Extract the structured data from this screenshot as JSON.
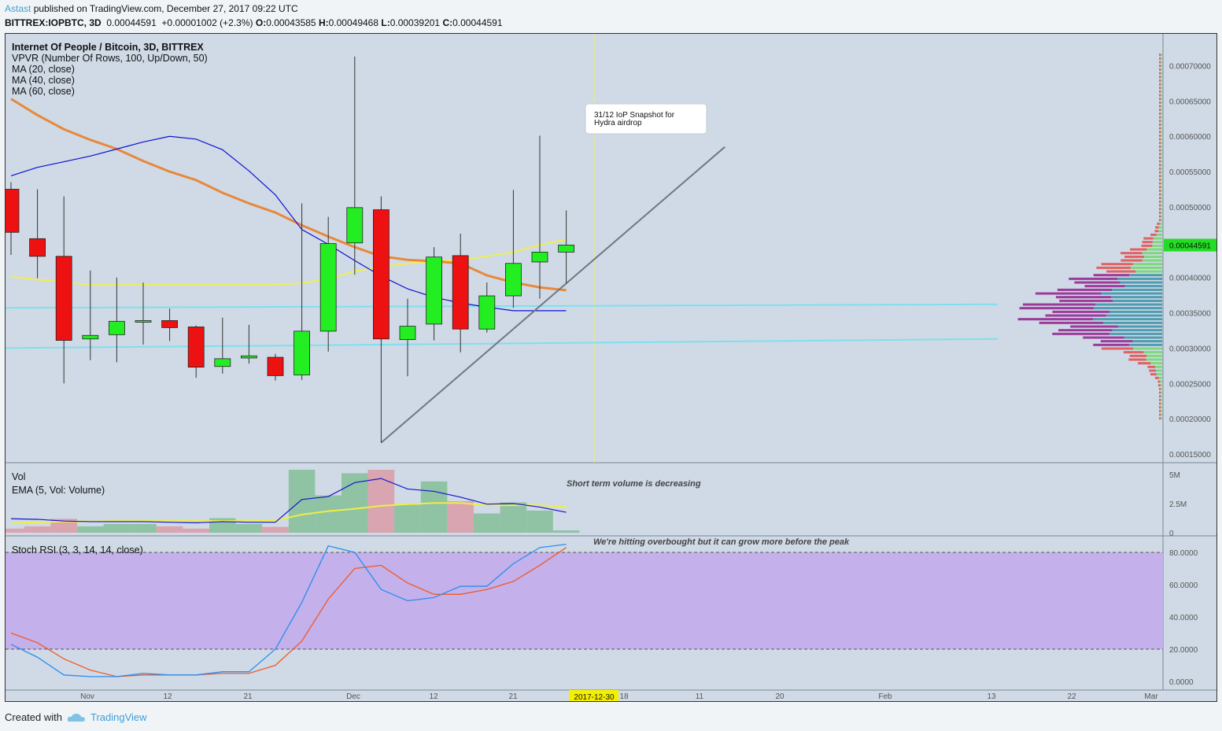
{
  "header": {
    "author": "Astast",
    "published": "published on TradingView.com, December 27, 2017 09:22 UTC",
    "symbol": "BITTREX:IOPBTC, 3D",
    "last": "0.00044591",
    "change": "+0.00001002 (+2.3%)",
    "o_label": "O:",
    "o_value": "0.00043585",
    "h_label": "H:",
    "h_value": "0.00049468",
    "l_label": "L:",
    "l_value": "0.00039201",
    "c_label": "C:",
    "c_value": "0.00044591"
  },
  "main_legend": {
    "title": "Internet Of People / Bitcoin, 3D, BITTREX",
    "vpvr": "VPVR (Number Of Rows, 100, Up/Down, 50)",
    "ma20": "MA (20, close)",
    "ma40": "MA (40, close)",
    "ma60": "MA (60, close)"
  },
  "annotations": {
    "snapshot_note": [
      "31/12 IoP Snapshot for",
      "Hydra airdrop"
    ],
    "volume_note": "Short term volume is decreasing",
    "rsi_note": "We're hitting overbought but it can grow more before the peak"
  },
  "volume_legend": {
    "vol": "Vol",
    "ema": "EMA (5, Vol: Volume)"
  },
  "rsi_legend": {
    "title": "Stoch RSI (3, 3, 14, 14, close)"
  },
  "price_axis": {
    "ticks": [
      "0.00070000",
      "0.00065000",
      "0.00060000",
      "0.00055000",
      "0.00050000",
      "0.00040000",
      "0.00035000",
      "0.00030000",
      "0.00025000",
      "0.00020000",
      "0.00015000"
    ],
    "current": "0.00044591"
  },
  "volume_axis": {
    "ticks": [
      "5M",
      "2.5M",
      "0"
    ]
  },
  "rsi_axis": {
    "ticks": [
      "80.0000",
      "60.0000",
      "40.0000",
      "20.0000",
      "0.0000"
    ]
  },
  "time_axis": {
    "ticks": [
      "Nov",
      "12",
      "21",
      "Dec",
      "12",
      "21",
      "18",
      "11",
      "20",
      "Feb",
      "13",
      "22",
      "Mar"
    ],
    "highlight": "2017-12-30"
  },
  "footer": {
    "created": "Created with",
    "brand": "TradingView"
  },
  "chart_data": {
    "type": "candlestick",
    "title": "Internet Of People / Bitcoin, 3D, BITTREX",
    "ylim": [
      0.00014,
      0.00072
    ],
    "candles": [
      {
        "o": 0.000525,
        "h": 0.000535,
        "l": 0.000432,
        "c": 0.000464
      },
      {
        "o": 0.000455,
        "h": 0.000525,
        "l": 0.000399,
        "c": 0.00043
      },
      {
        "o": 0.00043,
        "h": 0.000515,
        "l": 0.00025,
        "c": 0.000311
      },
      {
        "o": 0.000313,
        "h": 0.00041,
        "l": 0.000283,
        "c": 0.000318
      },
      {
        "o": 0.000319,
        "h": 0.0004,
        "l": 0.00028,
        "c": 0.000338
      },
      {
        "o": 0.000337,
        "h": 0.000393,
        "l": 0.000305,
        "c": 0.000339
      },
      {
        "o": 0.000339,
        "h": 0.000356,
        "l": 0.00031,
        "c": 0.000329
      },
      {
        "o": 0.00033,
        "h": 0.000332,
        "l": 0.000258,
        "c": 0.000273
      },
      {
        "o": 0.000274,
        "h": 0.000343,
        "l": 0.000264,
        "c": 0.000285
      },
      {
        "o": 0.000286,
        "h": 0.000333,
        "l": 0.000278,
        "c": 0.000289
      },
      {
        "o": 0.000287,
        "h": 0.000292,
        "l": 0.000254,
        "c": 0.000261
      },
      {
        "o": 0.000262,
        "h": 0.000505,
        "l": 0.000255,
        "c": 0.000324
      },
      {
        "o": 0.000324,
        "h": 0.000486,
        "l": 0.000295,
        "c": 0.000448
      },
      {
        "o": 0.000449,
        "h": 0.000713,
        "l": 0.000404,
        "c": 0.000499
      },
      {
        "o": 0.000496,
        "h": 0.000515,
        "l": 0.000166,
        "c": 0.000313
      },
      {
        "o": 0.000312,
        "h": 0.00037,
        "l": 0.00026,
        "c": 0.000331
      },
      {
        "o": 0.000334,
        "h": 0.000443,
        "l": 0.000311,
        "c": 0.000429
      },
      {
        "o": 0.000431,
        "h": 0.000462,
        "l": 0.000294,
        "c": 0.000327
      },
      {
        "o": 0.000327,
        "h": 0.000393,
        "l": 0.000322,
        "c": 0.000374
      },
      {
        "o": 0.000374,
        "h": 0.000524,
        "l": 0.000357,
        "c": 0.00042
      },
      {
        "o": 0.000422,
        "h": 0.000601,
        "l": 0.00037,
        "c": 0.000436
      },
      {
        "o": 0.000436,
        "h": 0.000495,
        "l": 0.000392,
        "c": 0.000446
      }
    ],
    "ma20": [
      0.000544,
      0.000556,
      0.000564,
      0.000572,
      0.000582,
      0.000592,
      0.0006,
      0.000596,
      0.000581,
      0.000551,
      0.000517,
      0.000468,
      0.000447,
      0.000424,
      0.000402,
      0.000384,
      0.000372,
      0.000364,
      0.000358,
      0.000353,
      0.000353,
      0.000353
    ],
    "ma40": [
      0.000401,
      0.000397,
      0.000394,
      0.000389,
      0.00039,
      0.00039,
      0.00039,
      0.00039,
      0.00039,
      0.00039,
      0.00039,
      0.000392,
      0.000398,
      0.000409,
      0.000415,
      0.00042,
      0.000423,
      0.000425,
      0.00043,
      0.000436,
      0.000446,
      0.000454
    ],
    "ma60": [
      0.000653,
      0.00063,
      0.00061,
      0.000595,
      0.000582,
      0.000565,
      0.00055,
      0.000538,
      0.00052,
      0.000505,
      0.000492,
      0.000474,
      0.000458,
      0.000443,
      0.00043,
      0.000425,
      0.000423,
      0.00042,
      0.000403,
      0.000393,
      0.000386,
      0.000382
    ],
    "trendline": [
      [
        14,
        0.000166
      ],
      [
        27,
        0.000585
      ]
    ],
    "support_lines": [
      [
        0.000357,
        0.000362
      ],
      [
        0.0003,
        0.000313
      ]
    ],
    "volume_ylim": [
      0,
      6000000
    ],
    "volume": [
      0.35,
      0.55,
      1.2,
      0.55,
      0.75,
      0.75,
      0.55,
      0.35,
      1.25,
      0.75,
      0.5,
      5.4,
      3.2,
      5.1,
      5.4,
      2.4,
      4.4,
      2.7,
      1.65,
      2.6,
      1.9,
      0.2
    ],
    "volume_ema": [
      0.8,
      0.9,
      0.95,
      0.98,
      1.0,
      1.0,
      1.0,
      1.0,
      1.0,
      1.0,
      1.05,
      1.55,
      1.85,
      2.05,
      2.3,
      2.45,
      2.55,
      2.55,
      2.35,
      2.35,
      2.35,
      2.2
    ],
    "volume_ema_fast": [
      1.2,
      1.15,
      1.0,
      0.95,
      0.95,
      0.95,
      0.9,
      0.85,
      0.95,
      0.9,
      0.9,
      2.85,
      3.1,
      4.3,
      4.65,
      3.75,
      3.55,
      3.05,
      2.45,
      2.5,
      2.2,
      1.75
    ],
    "stoch_k": [
      23,
      15,
      4,
      3,
      3,
      5,
      4,
      4,
      6,
      6,
      20,
      49,
      84,
      80,
      57,
      50,
      52,
      59,
      59,
      73,
      83,
      85
    ],
    "stoch_d": [
      30,
      24,
      14,
      7,
      3,
      4,
      4,
      4,
      5,
      5,
      10,
      25,
      51,
      70,
      72,
      61,
      54,
      54,
      57,
      62,
      72,
      83
    ],
    "rsi_ylim": [
      -5,
      90
    ],
    "rsi_levels": [
      80,
      20
    ]
  }
}
